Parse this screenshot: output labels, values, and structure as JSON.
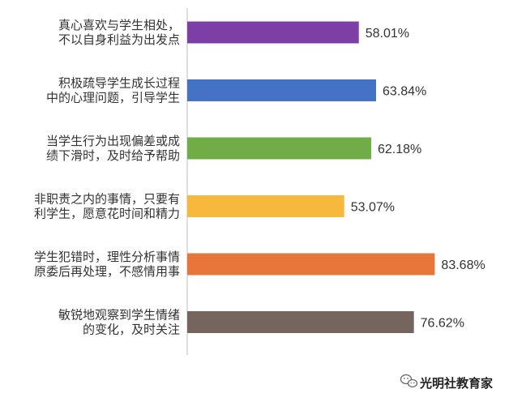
{
  "chart_data": {
    "type": "bar",
    "orientation": "horizontal",
    "categories": [
      [
        "真心喜欢与学生相处，",
        "不以自身利益为出发点"
      ],
      [
        "积极疏导学生成长过程",
        "中的心理问题，引导学生"
      ],
      [
        "当学生行为出现偏差或成",
        "绩下滑时，及时给予帮助"
      ],
      [
        "非职责之内的事情，只要有",
        "利学生，愿意花时间和精力"
      ],
      [
        "学生犯错时，理性分析事情",
        "原委后再处理，不感情用事"
      ],
      [
        "敏锐地观察到学生情绪",
        "的变化，及时关注"
      ]
    ],
    "values": [
      58.01,
      63.84,
      62.18,
      53.07,
      83.68,
      76.62
    ],
    "value_labels": [
      "58.01%",
      "63.84%",
      "62.18%",
      "53.07%",
      "83.68%",
      "76.62%"
    ],
    "colors": [
      "#7b3fa6",
      "#4472c4",
      "#70ad47",
      "#f6b93b",
      "#e8763a",
      "#76655f"
    ],
    "xlim": [
      0,
      100
    ],
    "grid": false,
    "legend": "none"
  },
  "watermark": {
    "text": "光明社教育家",
    "icon": "wechat-icon"
  }
}
